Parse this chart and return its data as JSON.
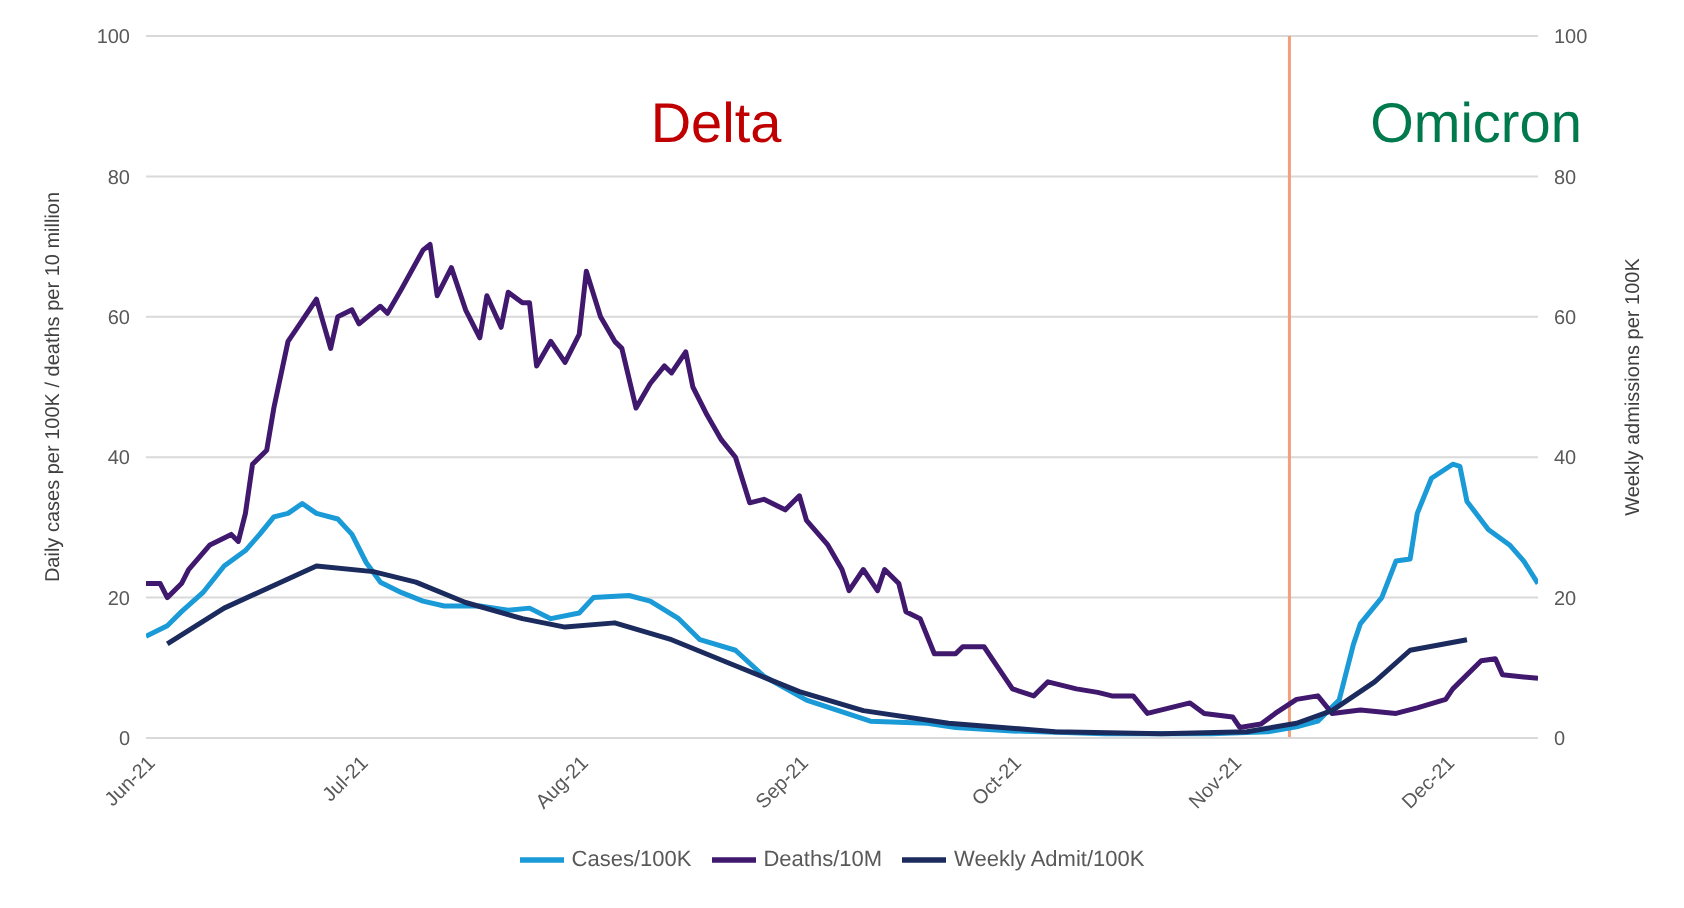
{
  "chart_data": {
    "type": "line",
    "ylabel": "Daily cases per 100K / deaths per 10 million",
    "y2label": "Weekly admissions per 100K",
    "annotations": [
      "Delta",
      "Omicron"
    ],
    "xlim": [
      "2021-06-01",
      "2021-12-14"
    ],
    "xticks": [
      {
        "value": "2021-06-01",
        "label": "Jun-21"
      },
      {
        "value": "2021-07-01",
        "label": "Jul-21"
      },
      {
        "value": "2021-08-01",
        "label": "Aug-21"
      },
      {
        "value": "2021-09-01",
        "label": "Sep-21"
      },
      {
        "value": "2021-10-01",
        "label": "Oct-21"
      },
      {
        "value": "2021-11-01",
        "label": "Nov-21"
      },
      {
        "value": "2021-12-01",
        "label": "Dec-21"
      }
    ],
    "ylim": [
      0,
      100
    ],
    "yticks": [
      0,
      20,
      40,
      60,
      80,
      100
    ],
    "y2lim": [
      0,
      100
    ],
    "y2ticks": [
      0,
      20,
      40,
      60,
      80,
      100
    ],
    "grid": "y",
    "legend": "bottom",
    "marker": "none",
    "line_style": "solid",
    "ref_lines": [
      {
        "axis": "x",
        "value": "2021-11-09",
        "color": "#f0a07a"
      }
    ],
    "series": [
      {
        "name": "Cases/100K",
        "color": "#1a9ad6",
        "x": [
          "2021-06-01",
          "2021-06-04",
          "2021-06-06",
          "2021-06-09",
          "2021-06-12",
          "2021-06-15",
          "2021-06-17",
          "2021-06-19",
          "2021-06-21",
          "2021-06-23",
          "2021-06-25",
          "2021-06-28",
          "2021-06-30",
          "2021-07-02",
          "2021-07-04",
          "2021-07-07",
          "2021-07-10",
          "2021-07-13",
          "2021-07-18",
          "2021-07-22",
          "2021-07-25",
          "2021-07-28",
          "2021-08-01",
          "2021-08-03",
          "2021-08-08",
          "2021-08-11",
          "2021-08-15",
          "2021-08-18",
          "2021-08-23",
          "2021-08-27",
          "2021-09-02",
          "2021-09-11",
          "2021-09-19",
          "2021-09-23",
          "2021-10-01",
          "2021-10-14",
          "2021-10-29",
          "2021-11-06",
          "2021-11-10",
          "2021-11-13",
          "2021-11-16",
          "2021-11-18",
          "2021-11-19",
          "2021-11-22",
          "2021-11-24",
          "2021-11-26",
          "2021-11-27",
          "2021-11-29",
          "2021-12-02",
          "2021-12-03",
          "2021-12-04",
          "2021-12-07",
          "2021-12-10",
          "2021-12-12",
          "2021-12-14"
        ],
        "values": [
          14.5,
          16,
          18,
          20.7,
          24.5,
          26.7,
          29,
          31.5,
          32,
          33.4,
          32,
          31.2,
          29,
          25,
          22.2,
          20.7,
          19.5,
          18.8,
          18.8,
          18.2,
          18.5,
          17,
          17.8,
          20,
          20.3,
          19.5,
          17,
          14,
          12.5,
          8.8,
          5.4,
          2.4,
          2.1,
          1.5,
          1,
          0.6,
          0.6,
          0.9,
          1.6,
          2.4,
          5.4,
          13.3,
          16.3,
          20,
          25.2,
          25.5,
          32,
          37,
          39,
          38.7,
          33.7,
          29.7,
          27.5,
          25.2,
          22
        ]
      },
      {
        "name": "Deaths/10M",
        "color": "#40196e",
        "x": [
          "2021-06-01",
          "2021-06-03",
          "2021-06-04",
          "2021-06-06",
          "2021-06-07",
          "2021-06-10",
          "2021-06-11",
          "2021-06-13",
          "2021-06-14",
          "2021-06-15",
          "2021-06-16",
          "2021-06-18",
          "2021-06-19",
          "2021-06-21",
          "2021-06-23",
          "2021-06-25",
          "2021-06-26",
          "2021-06-27",
          "2021-06-28",
          "2021-06-30",
          "2021-07-01",
          "2021-07-04",
          "2021-07-05",
          "2021-07-07",
          "2021-07-10",
          "2021-07-11",
          "2021-07-12",
          "2021-07-14",
          "2021-07-16",
          "2021-07-18",
          "2021-07-19",
          "2021-07-21",
          "2021-07-22",
          "2021-07-24",
          "2021-07-25",
          "2021-07-26",
          "2021-07-28",
          "2021-07-30",
          "2021-08-01",
          "2021-08-02",
          "2021-08-04",
          "2021-08-06",
          "2021-08-07",
          "2021-08-09",
          "2021-08-11",
          "2021-08-13",
          "2021-08-14",
          "2021-08-16",
          "2021-08-17",
          "2021-08-19",
          "2021-08-21",
          "2021-08-23",
          "2021-08-25",
          "2021-08-27",
          "2021-08-30",
          "2021-09-01",
          "2021-09-02",
          "2021-09-05",
          "2021-09-07",
          "2021-09-08",
          "2021-09-10",
          "2021-09-12",
          "2021-09-13",
          "2021-09-15",
          "2021-09-16",
          "2021-09-18",
          "2021-09-20",
          "2021-09-23",
          "2021-09-24",
          "2021-09-27",
          "2021-09-29",
          "2021-10-01",
          "2021-10-04",
          "2021-10-06",
          "2021-10-10",
          "2021-10-13",
          "2021-10-15",
          "2021-10-18",
          "2021-10-20",
          "2021-10-24",
          "2021-10-26",
          "2021-10-28",
          "2021-11-01",
          "2021-11-02",
          "2021-11-05",
          "2021-11-07",
          "2021-11-10",
          "2021-11-13",
          "2021-11-15",
          "2021-11-19",
          "2021-11-24",
          "2021-11-27",
          "2021-12-01",
          "2021-12-02",
          "2021-12-06",
          "2021-12-08",
          "2021-12-09",
          "2021-12-14"
        ],
        "values": [
          22,
          22,
          20,
          22,
          24,
          27.5,
          28,
          29,
          28,
          32,
          39,
          41,
          47,
          56.5,
          59.5,
          62.5,
          59,
          55.5,
          60,
          61,
          59,
          61.5,
          60.5,
          64,
          69.5,
          70.3,
          63,
          67,
          61,
          57,
          63,
          58.5,
          63.5,
          62,
          62,
          53,
          56.5,
          53.5,
          57.5,
          66.5,
          60,
          56.5,
          55.5,
          47,
          50.5,
          53,
          52,
          55,
          50,
          46,
          42.5,
          40,
          33.5,
          34,
          32.5,
          34.5,
          31,
          27.5,
          24,
          21,
          24,
          21,
          24,
          22,
          18,
          17,
          12,
          12,
          13,
          13,
          10,
          7,
          6,
          8,
          7,
          6.5,
          6,
          6,
          3.5,
          4.5,
          5,
          3.5,
          3,
          1.5,
          2,
          3.5,
          5.5,
          6,
          3.5,
          4,
          3.5,
          4.3,
          5.5,
          7,
          11,
          11.3,
          9,
          8.5
        ]
      },
      {
        "name": "Weekly Admit/100K",
        "color": "#1b2b5e",
        "axis": "y2",
        "x": [
          "2021-06-04",
          "2021-06-12",
          "2021-06-25",
          "2021-07-03",
          "2021-07-09",
          "2021-07-16",
          "2021-07-24",
          "2021-07-30",
          "2021-08-06",
          "2021-08-14",
          "2021-08-23",
          "2021-09-01",
          "2021-09-10",
          "2021-09-22",
          "2021-10-07",
          "2021-10-22",
          "2021-11-03",
          "2021-11-10",
          "2021-11-15",
          "2021-11-21",
          "2021-11-26",
          "2021-12-04"
        ],
        "values": [
          13.4,
          18.5,
          24.5,
          23.7,
          22.2,
          19.3,
          17,
          15.8,
          16.4,
          14,
          10.3,
          6.6,
          3.9,
          2.1,
          0.9,
          0.6,
          0.9,
          2.1,
          3.9,
          8,
          12.5,
          14
        ]
      }
    ]
  }
}
